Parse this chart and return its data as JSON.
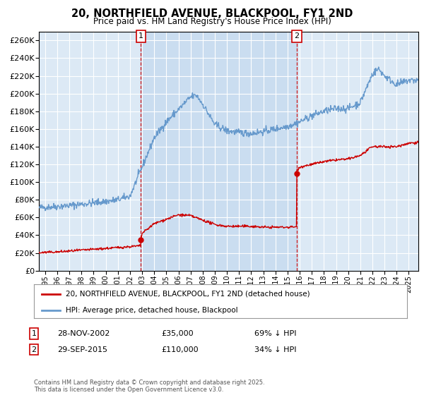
{
  "title": "20, NORTHFIELD AVENUE, BLACKPOOL, FY1 2ND",
  "subtitle": "Price paid vs. HM Land Registry's House Price Index (HPI)",
  "background_color": "#dce9f5",
  "shade_color": "#c5daf0",
  "grid_color": "#ffffff",
  "ylim": [
    0,
    270000
  ],
  "yticks": [
    0,
    20000,
    40000,
    60000,
    80000,
    100000,
    120000,
    140000,
    160000,
    180000,
    200000,
    220000,
    240000,
    260000
  ],
  "xlim_start": 1994.5,
  "xlim_end": 2025.8,
  "xticks": [
    1995,
    1996,
    1997,
    1998,
    1999,
    2000,
    2001,
    2002,
    2003,
    2004,
    2005,
    2006,
    2007,
    2008,
    2009,
    2010,
    2011,
    2012,
    2013,
    2014,
    2015,
    2016,
    2017,
    2018,
    2019,
    2020,
    2021,
    2022,
    2023,
    2024,
    2025
  ],
  "sale1_x": 2002.91,
  "sale1_y": 35000,
  "sale1_label": "1",
  "sale1_date": "28-NOV-2002",
  "sale1_price": "£35,000",
  "sale1_hpi": "69% ↓ HPI",
  "sale2_x": 2015.75,
  "sale2_y": 110000,
  "sale2_label": "2",
  "sale2_date": "29-SEP-2015",
  "sale2_price": "£110,000",
  "sale2_hpi": "34% ↓ HPI",
  "legend_label_red": "20, NORTHFIELD AVENUE, BLACKPOOL, FY1 2ND (detached house)",
  "legend_label_blue": "HPI: Average price, detached house, Blackpool",
  "footer": "Contains HM Land Registry data © Crown copyright and database right 2025.\nThis data is licensed under the Open Government Licence v3.0.",
  "red_color": "#cc0000",
  "blue_color": "#6699cc",
  "vline_color": "#cc0000"
}
